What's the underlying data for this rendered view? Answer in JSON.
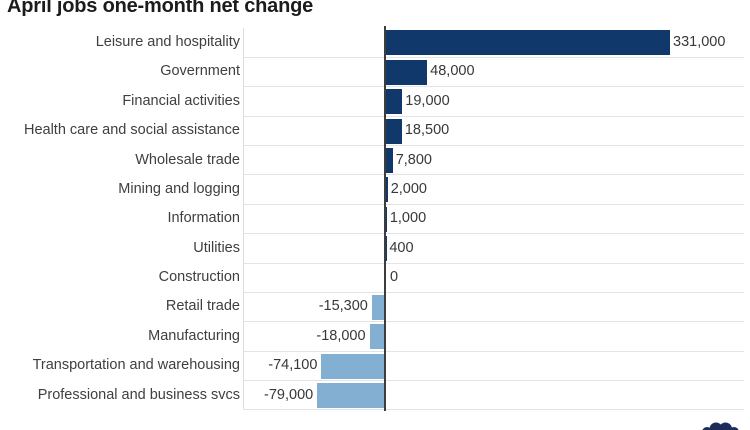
{
  "title": "April jobs one-month net change",
  "chart_data": {
    "type": "bar",
    "orientation": "horizontal",
    "title": "April jobs one-month net change",
    "categories": [
      "Leisure and hospitality",
      "Government",
      "Financial activities",
      "Health care and social assistance",
      "Wholesale trade",
      "Mining and logging",
      "Information",
      "Utilities",
      "Construction",
      "Retail trade",
      "Manufacturing",
      "Transportation and warehousing",
      "Professional and business svcs"
    ],
    "values": [
      331000,
      48000,
      19000,
      18500,
      7800,
      2000,
      1000,
      400,
      0,
      -15300,
      -18000,
      -74100,
      -79000
    ],
    "value_labels": [
      "331,000",
      "48,000",
      "19,000",
      "18,500",
      "7,800",
      "2,000",
      "1,000",
      "400",
      "0",
      "-15,300",
      "-18,000",
      "-74,100",
      "-79,000"
    ],
    "xlabel": "",
    "ylabel": "",
    "xlim": [
      -166000,
      417000
    ],
    "zero_line": true,
    "grid": "horizontal row separators only",
    "legend": "none",
    "colors": {
      "positive_bar": "#11386a",
      "negative_bar": "#82afd2",
      "grid_line": "#e4e4e4",
      "axis_line": "#3d3d3d",
      "category_text": "#3f3f3f",
      "value_text": "#383838",
      "title_text": "#1c1c1c",
      "logo": "#1d2d5a"
    }
  },
  "branding": {
    "logo_icon": "nbc-peacock-logo"
  }
}
